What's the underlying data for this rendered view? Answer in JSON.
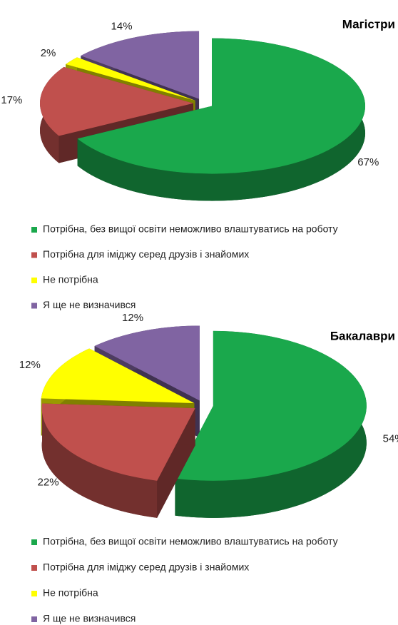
{
  "chart_data": [
    {
      "type": "pie3d",
      "title": "Магістри",
      "categories": [
        "Потрібна, без вищої освіти неможливо влаштуватись на роботу",
        "Потрібна для іміджу серед друзів і знайомих",
        "Не потрібна",
        "Я ще не визначився"
      ],
      "values": [
        67,
        17,
        2,
        14
      ],
      "value_labels": [
        "67%",
        "17%",
        "2%",
        "14%"
      ],
      "colors": [
        "#1aa84c",
        "#c0504d",
        "#ffff00",
        "#8064a2"
      ]
    },
    {
      "type": "pie3d",
      "title": "Бакалаври",
      "categories": [
        "Потрібна, без вищої освіти неможливо влаштуватись на роботу",
        "Потрібна для іміджу серед друзів і знайомих",
        "Не потрібна",
        "Я ще не визначився"
      ],
      "values": [
        54,
        22,
        12,
        12
      ],
      "value_labels": [
        "54%",
        "22%",
        "12%",
        "12%"
      ],
      "colors": [
        "#1aa84c",
        "#c0504d",
        "#ffff00",
        "#8064a2"
      ]
    }
  ]
}
